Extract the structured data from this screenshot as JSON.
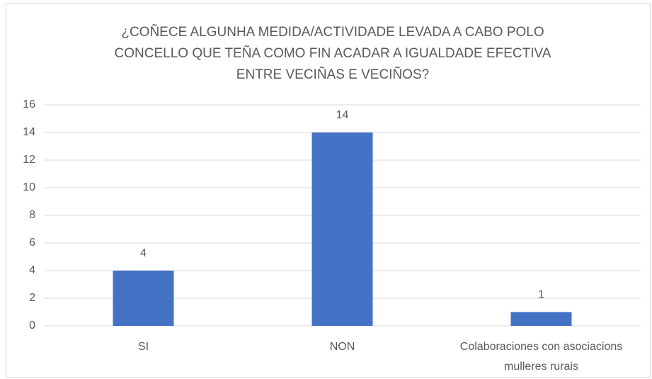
{
  "chart_data": {
    "type": "bar",
    "title": [
      "¿COÑECE ALGUNHA MEDIDA/ACTIVIDADE LEVADA A CABO POLO",
      "CONCELLO QUE TEÑA COMO FIN ACADAR A IGUALDADE EFECTIVA",
      "ENTRE VECIÑAS E VECIÑOS?"
    ],
    "categories": [
      "SI",
      "NON",
      "Colaboraciones con asociacions mulleres rurais"
    ],
    "values": [
      4,
      14,
      1
    ],
    "color": "#4472c4",
    "ylim": [
      0,
      16
    ],
    "yticks": [
      0,
      2,
      4,
      6,
      8,
      10,
      12,
      14,
      16
    ],
    "grid": true
  }
}
